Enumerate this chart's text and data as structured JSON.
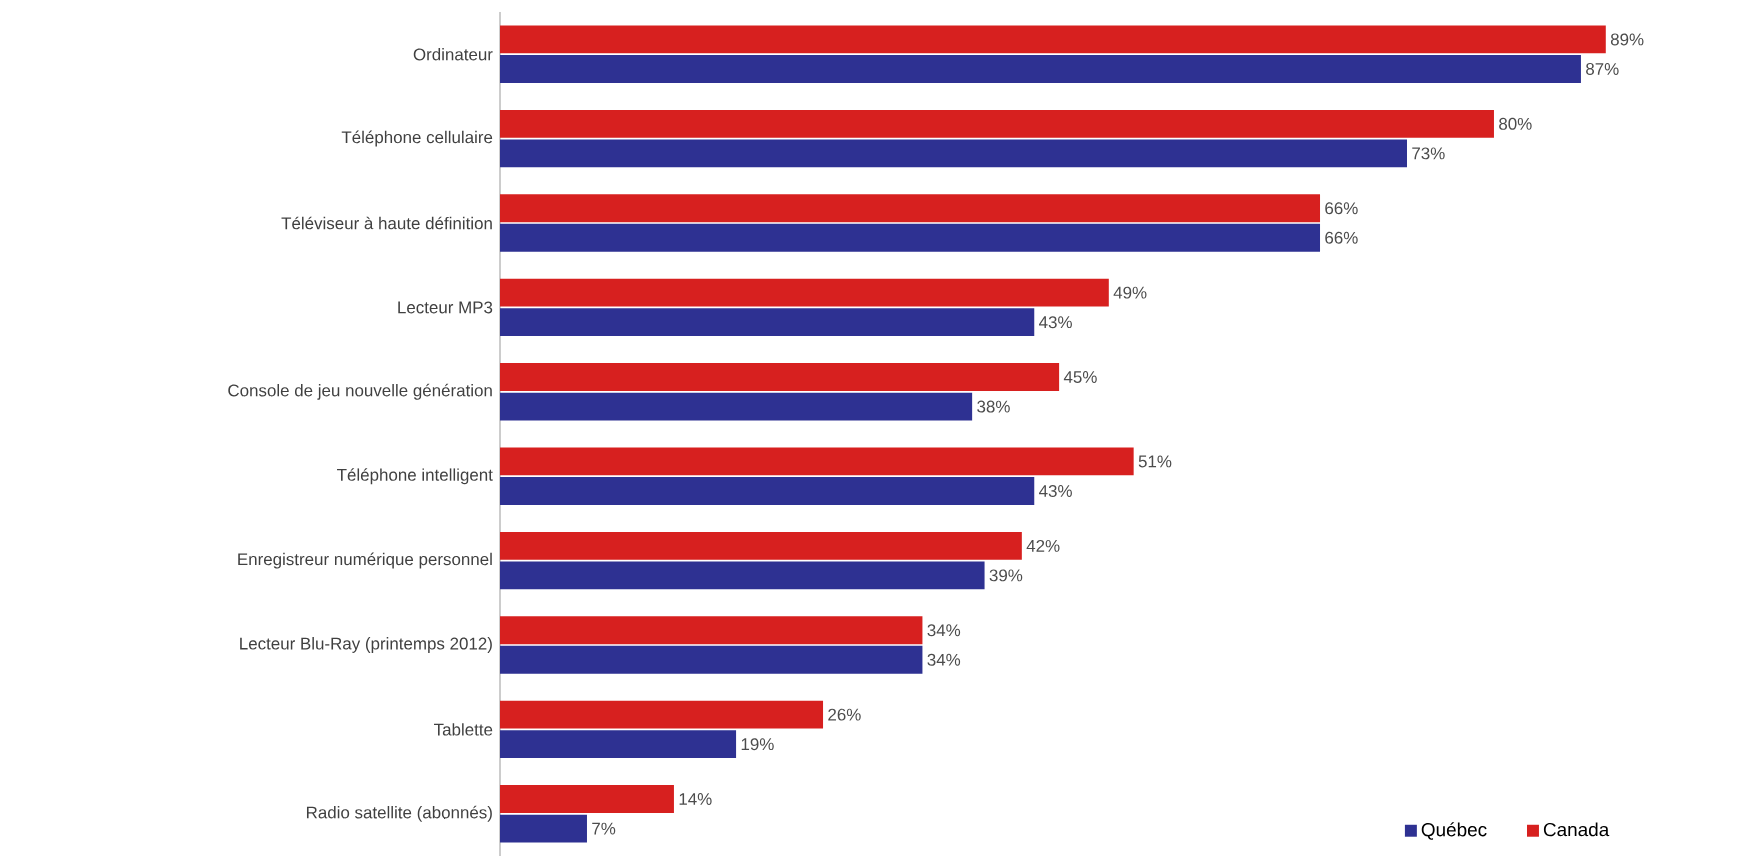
{
  "chart_data": {
    "type": "bar",
    "orientation": "horizontal",
    "categories": [
      "Ordinateur",
      "Téléphone cellulaire",
      "Téléviseur à haute définition",
      "Lecteur MP3",
      "Console de jeu nouvelle génération",
      "Téléphone intelligent",
      "Enregistreur numérique personnel",
      "Lecteur Blu-Ray (printemps 2012)",
      "Tablette",
      "Radio satellite (abonnés)"
    ],
    "series": [
      {
        "name": "Québec",
        "color": "#2e3192",
        "values": [
          87,
          73,
          66,
          43,
          38,
          43,
          39,
          34,
          19,
          7
        ],
        "value_labels": [
          "87%",
          "73%",
          "66%",
          "43%",
          "38%",
          "43%",
          "39%",
          "34%",
          "19%",
          "7%"
        ]
      },
      {
        "name": "Canada",
        "color": "#d7201f",
        "values": [
          89,
          80,
          66,
          49,
          45,
          51,
          42,
          34,
          26,
          14
        ],
        "value_labels": [
          "89%",
          "80%",
          "66%",
          "49%",
          "45%",
          "51%",
          "42%",
          "34%",
          "26%",
          "14%"
        ]
      }
    ],
    "legend": "bottom right"
  }
}
